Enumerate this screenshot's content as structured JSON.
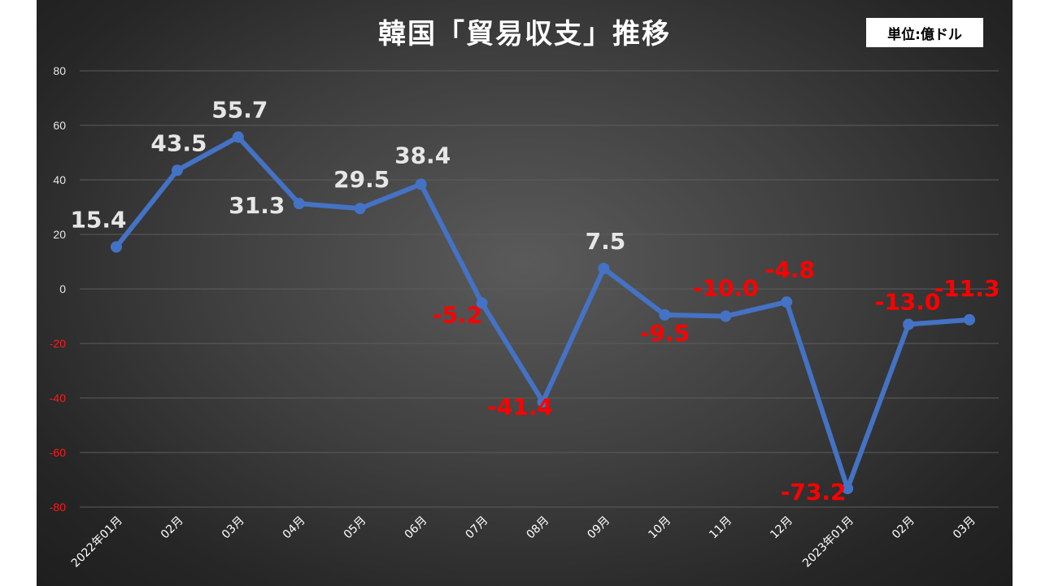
{
  "title": "韓国「貿易収支」推移",
  "unit_label": "単位:億ドル",
  "colors": {
    "line": "#4472c4",
    "positive_label": "#e6e6e6",
    "negative_label": "#ff0000",
    "positive_tick": "#e6e6e6",
    "negative_tick": "#ff1a1a",
    "grid": "#5c5c5c"
  },
  "chart_data": {
    "type": "line",
    "title": "韓国「貿易収支」推移",
    "xlabel": "",
    "ylabel": "",
    "ylim": [
      -80,
      80
    ],
    "yticks": [
      80,
      60,
      40,
      20,
      0,
      -20,
      -40,
      -60,
      -80
    ],
    "grid": true,
    "categories": [
      "2022年01月",
      "02月",
      "03月",
      "04月",
      "05月",
      "06月",
      "07月",
      "08月",
      "09月",
      "10月",
      "11月",
      "12月",
      "2023年01月",
      "02月",
      "03月"
    ],
    "values": [
      15.4,
      43.5,
      55.7,
      31.3,
      29.5,
      38.4,
      -5.2,
      -41.4,
      7.5,
      -9.5,
      -10.0,
      -4.8,
      -73.2,
      -13.0,
      -11.3
    ],
    "data_labels": [
      "15.4",
      "43.5",
      "55.7",
      "31.3",
      "29.5",
      "38.4",
      "-5.2",
      "-41.4",
      "7.5",
      "-9.5",
      "-10.0",
      "-4.8",
      "-73.2",
      "-13.0",
      "-11.3"
    ]
  }
}
